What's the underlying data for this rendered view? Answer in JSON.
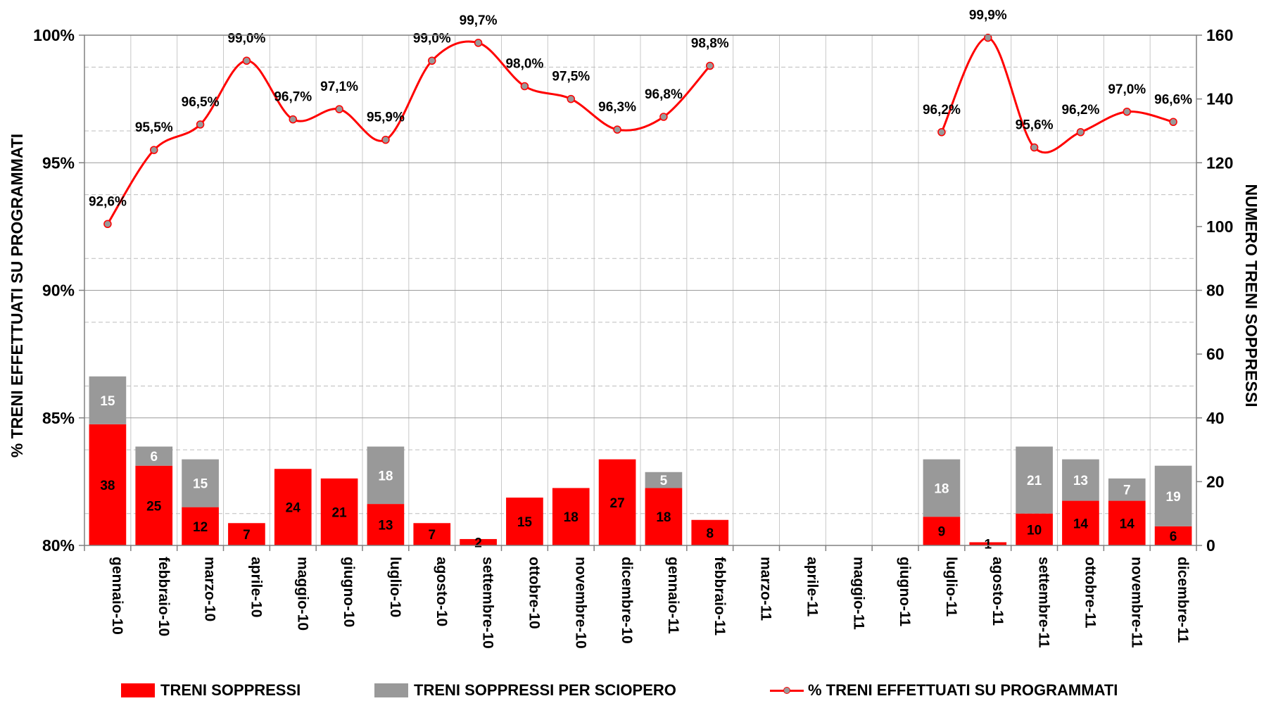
{
  "chart_data": {
    "type": "bar",
    "categories": [
      "gennaio-10",
      "febbraio-10",
      "marzo-10",
      "aprile-10",
      "maggio-10",
      "giugno-10",
      "luglio-10",
      "agosto-10",
      "settembre-10",
      "ottobre-10",
      "novembre-10",
      "dicembre-10",
      "gennaio-11",
      "febbraio-11",
      "marzo-11",
      "aprile-11",
      "maggio-11",
      "giugno-11",
      "luglio-11",
      "agosto-11",
      "settembre-11",
      "ottobre-11",
      "novembre-11",
      "dicembre-11"
    ],
    "series": [
      {
        "name": "TRENI SOPPRESSI",
        "type": "bar",
        "stack": "treni",
        "axis": "right",
        "color": "#ff0000",
        "label_color": "#000000",
        "values": [
          38,
          25,
          12,
          7,
          24,
          21,
          13,
          7,
          2,
          15,
          18,
          27,
          18,
          8,
          null,
          null,
          null,
          null,
          9,
          1,
          10,
          14,
          14,
          6
        ]
      },
      {
        "name": "TRENI SOPPRESSI PER SCIOPERO",
        "type": "bar",
        "stack": "treni",
        "axis": "right",
        "color": "#999999",
        "label_color": "#ffffff",
        "values": [
          15,
          6,
          15,
          null,
          null,
          null,
          18,
          null,
          null,
          null,
          null,
          null,
          5,
          null,
          null,
          null,
          null,
          null,
          18,
          null,
          21,
          13,
          7,
          19
        ]
      },
      {
        "name": "% TRENI EFFETTUATI SU PROGRAMMATI",
        "type": "line",
        "axis": "left",
        "color": "#ff0000",
        "marker_color": "#999999",
        "values": [
          92.6,
          95.5,
          96.5,
          99.0,
          96.7,
          97.1,
          95.9,
          99.0,
          99.7,
          98.0,
          97.5,
          96.3,
          96.8,
          98.8,
          null,
          null,
          null,
          null,
          96.2,
          99.9,
          95.6,
          96.2,
          97.0,
          96.6
        ],
        "labels": [
          "92,6%",
          "95,5%",
          "96,5%",
          "99,0%",
          "96,7%",
          "97,1%",
          "95,9%",
          "99,0%",
          "99,7%",
          "98,0%",
          "97,5%",
          "96,3%",
          "96,8%",
          "98,8%",
          "",
          "",
          "",
          "",
          "96,2%",
          "99,9%",
          "95,6%",
          "96,2%",
          "97,0%",
          "96,6%"
        ]
      }
    ],
    "ylabel": "% TRENI EFFETTUATI SU PROGRAMMATI",
    "ylabel_right": "NUMERO TRENI SOPPRESSI",
    "ylim": [
      80,
      100
    ],
    "ylim_right": [
      0,
      160
    ],
    "yticks": [
      "80%",
      "85%",
      "90%",
      "95%",
      "100%"
    ],
    "yticks_right": [
      "0",
      "20",
      "40",
      "60",
      "80",
      "100",
      "120",
      "140",
      "160"
    ],
    "grid": true,
    "legend_position": "bottom"
  },
  "legend": {
    "soppressi": "TRENI SOPPRESSI",
    "sciopero": "TRENI SOPPRESSI PER SCIOPERO",
    "percent": "% TRENI EFFETTUATI SU PROGRAMMATI"
  }
}
